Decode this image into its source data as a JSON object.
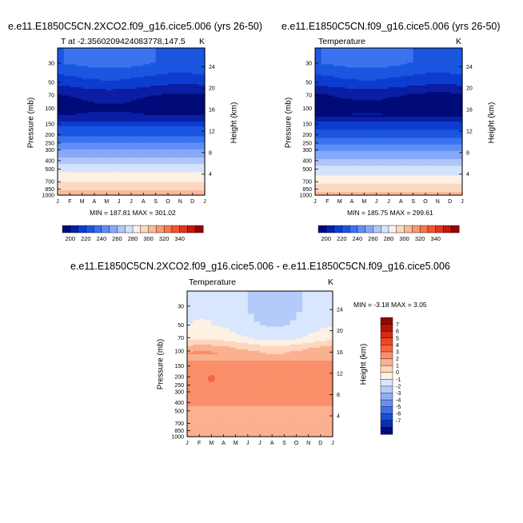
{
  "chart_data": [
    {
      "type": "heatmap",
      "title": "e.e11.E1850C5CN.2XCO2.f09_g16.cice5.006 (yrs 26-50)",
      "subtitle": "T at -2.3560209424083778,147.5",
      "units": "K",
      "ylabel": "Pressure (mb)",
      "ylabel_right": "Height (km)",
      "x_ticks": [
        "J",
        "F",
        "M",
        "A",
        "M",
        "J",
        "J",
        "A",
        "S",
        "O",
        "N",
        "D",
        "J"
      ],
      "y_ticks": [
        "30",
        "50",
        "70",
        "100",
        "150",
        "200",
        "250",
        "300",
        "400",
        "500",
        "700",
        "850",
        "1000"
      ],
      "y_right_ticks": [
        "24",
        "20",
        "16",
        "12",
        "8",
        "4"
      ],
      "stats": "MIN = 187.81 MAX = 301.02",
      "colorbar_labels": [
        "200",
        "220",
        "240",
        "260",
        "280",
        "300",
        "320",
        "340"
      ],
      "colorbar_colors": [
        "#000a78",
        "#0a1fa5",
        "#0d3ccf",
        "#1a56e0",
        "#3a72f0",
        "#5e8ef5",
        "#86a9f7",
        "#afc6fa",
        "#d5e2fc",
        "#fdf0e5",
        "#fcd8c0",
        "#fbb99a",
        "#f99a75",
        "#f57851",
        "#ef5530",
        "#e0341a",
        "#c1170c",
        "#8e0805"
      ],
      "field": [
        {
          "p": 30,
          "v": 226
        },
        {
          "p": 50,
          "v": 210
        },
        {
          "p": 70,
          "v": 196
        },
        {
          "p": 100,
          "v": 190
        },
        {
          "p": 130,
          "v": 198
        },
        {
          "p": 150,
          "v": 212
        },
        {
          "p": 200,
          "v": 222
        },
        {
          "p": 250,
          "v": 234
        },
        {
          "p": 300,
          "v": 246
        },
        {
          "p": 400,
          "v": 258
        },
        {
          "p": 500,
          "v": 272
        },
        {
          "p": 600,
          "v": 278
        },
        {
          "p": 700,
          "v": 284
        },
        {
          "p": 850,
          "v": 294
        },
        {
          "p": 1000,
          "v": 301
        }
      ]
    },
    {
      "type": "heatmap",
      "title": "e.e11.E1850C5CN.f09_g16.cice5.006 (yrs 26-50)",
      "subtitle": "Temperature",
      "units": "K",
      "ylabel": "Pressure (mb)",
      "ylabel_right": "Height (km)",
      "x_ticks": [
        "J",
        "F",
        "M",
        "A",
        "M",
        "J",
        "J",
        "A",
        "S",
        "O",
        "N",
        "D",
        "J"
      ],
      "y_ticks": [
        "30",
        "50",
        "70",
        "100",
        "150",
        "200",
        "250",
        "300",
        "400",
        "500",
        "700",
        "850",
        "1000"
      ],
      "y_right_ticks": [
        "24",
        "20",
        "16",
        "12",
        "8",
        "4"
      ],
      "stats": "MIN = 185.75 MAX = 299.61",
      "colorbar_labels": [
        "200",
        "220",
        "240",
        "260",
        "280",
        "300",
        "320",
        "340"
      ],
      "colorbar_colors": [
        "#000a78",
        "#0a1fa5",
        "#0d3ccf",
        "#1a56e0",
        "#3a72f0",
        "#5e8ef5",
        "#86a9f7",
        "#afc6fa",
        "#d5e2fc",
        "#fdf0e5",
        "#fcd8c0",
        "#fbb99a",
        "#f99a75",
        "#f57851",
        "#ef5530",
        "#e0341a",
        "#c1170c",
        "#8e0805"
      ],
      "field": [
        {
          "p": 30,
          "v": 226
        },
        {
          "p": 50,
          "v": 210
        },
        {
          "p": 70,
          "v": 195
        },
        {
          "p": 100,
          "v": 188
        },
        {
          "p": 130,
          "v": 196
        },
        {
          "p": 150,
          "v": 210
        },
        {
          "p": 200,
          "v": 220
        },
        {
          "p": 250,
          "v": 232
        },
        {
          "p": 300,
          "v": 244
        },
        {
          "p": 400,
          "v": 256
        },
        {
          "p": 500,
          "v": 270
        },
        {
          "p": 600,
          "v": 276
        },
        {
          "p": 700,
          "v": 282
        },
        {
          "p": 850,
          "v": 292
        },
        {
          "p": 1000,
          "v": 299
        }
      ]
    },
    {
      "type": "heatmap",
      "title": "e.e11.E1850C5CN.2XCO2.f09_g16.cice5.006 - e.e11.E1850C5CN.f09_g16.cice5.006",
      "subtitle": "Temperature",
      "units": "K",
      "ylabel": "Pressure (mb)",
      "ylabel_right": "Height (km)",
      "x_ticks": [
        "J",
        "F",
        "M",
        "A",
        "M",
        "J",
        "J",
        "A",
        "S",
        "O",
        "N",
        "D",
        "J"
      ],
      "y_ticks": [
        "30",
        "50",
        "70",
        "100",
        "150",
        "200",
        "250",
        "300",
        "400",
        "500",
        "700",
        "850",
        "1000"
      ],
      "y_right_ticks": [
        "24",
        "20",
        "16",
        "12",
        "8",
        "4"
      ],
      "stats": "MIN = -3.18 MAX = 3.05",
      "colorbar_labels": [
        "7",
        "6",
        "5",
        "4",
        "3",
        "2",
        "1",
        "0",
        "-1",
        "-2",
        "-3",
        "-4",
        "-5",
        "-6",
        "-7"
      ],
      "colorbar_colors": [
        "#8e0805",
        "#b3130a",
        "#d52a14",
        "#ec4625",
        "#f5663f",
        "#f98e68",
        "#fbb18f",
        "#fdd6bd",
        "#fdf1e4",
        "#d9e6fd",
        "#b4cbfa",
        "#8eaef6",
        "#6890f2",
        "#3e6ee8",
        "#1a4cd8",
        "#0a2eb0",
        "#000a78"
      ],
      "field": [
        {
          "p": 30,
          "v": -1.8
        },
        {
          "p": 50,
          "v": -1.5
        },
        {
          "p": 70,
          "v": -0.8
        },
        {
          "p": 85,
          "v": 0.4
        },
        {
          "p": 100,
          "v": 1.4
        },
        {
          "p": 150,
          "v": 2.3
        },
        {
          "p": 200,
          "v": 2.4
        },
        {
          "p": 300,
          "v": 2.3
        },
        {
          "p": 400,
          "v": 2.1
        },
        {
          "p": 500,
          "v": 1.9
        },
        {
          "p": 700,
          "v": 1.8
        },
        {
          "p": 1000,
          "v": 1.7
        }
      ]
    }
  ]
}
